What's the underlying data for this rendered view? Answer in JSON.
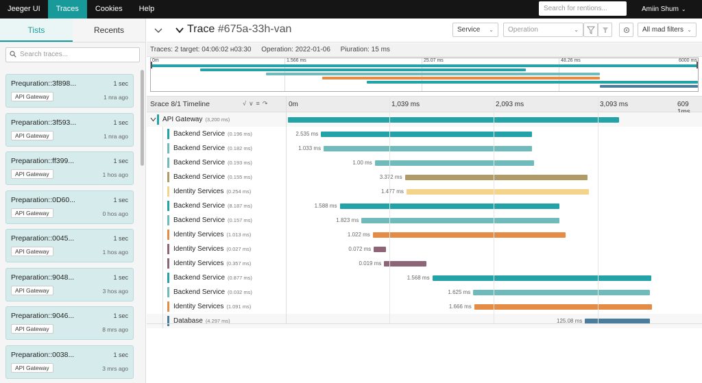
{
  "nav": {
    "brand": "Jeeger UI",
    "items": [
      "Traces",
      "Cookies",
      "Help"
    ],
    "search_placeholder": "Search for rentions...",
    "user": "Amіin Shum"
  },
  "sidebar": {
    "tabs": [
      "Tists",
      "Recents"
    ],
    "search_placeholder": "Search traces...",
    "cards": [
      {
        "title": "Prequration::3f898...",
        "duration": "1 sec",
        "service": "API Gateway",
        "ago": "1 nra ago"
      },
      {
        "title": "Preparation::3f593...",
        "duration": "1 sec",
        "service": "API Gateway",
        "ago": "1 nra ago"
      },
      {
        "title": "Preparation::ff399...",
        "duration": "1 sec",
        "service": "API Gateway",
        "ago": "1 hos ago"
      },
      {
        "title": "Preparation::0D60...",
        "duration": "1 sec",
        "service": "API Gateway",
        "ago": "0 hos ago"
      },
      {
        "title": "Preparation::0045...",
        "duration": "1 sec",
        "service": "API Gateway",
        "ago": "1 hos ago"
      },
      {
        "title": "Preparation::9048...",
        "duration": "1 sec",
        "service": "API Gateway",
        "ago": "3 hos ago"
      },
      {
        "title": "Preparation::9046...",
        "duration": "1 sec",
        "service": "API Gateway",
        "ago": "8 mrs ago"
      },
      {
        "title": "Preparation::0038...",
        "duration": "1 sec",
        "service": "API Gateway",
        "ago": "3 mrs ago"
      }
    ]
  },
  "header": {
    "title_prefix": "Trace",
    "trace_id": "#675a-33h-van",
    "service_select": "Service",
    "operation_placeholder": "Operation",
    "filters_select": "All mad filters"
  },
  "meta": {
    "traces": "Traces: 2 target: 04:06:02 н03:30",
    "operation": "Operation:  2022-01-06",
    "duration": "Piuration:  15 ms"
  },
  "minimap": {
    "ticks": [
      "0m",
      "1.566 ms",
      "25.07 ms",
      "48.26 ms",
      "6000 ms"
    ]
  },
  "timeline": {
    "title": "Srace 8/1 Timeline",
    "ticks": [
      "0m",
      "1,039 ms",
      "2,093 ms",
      "3,093 ms",
      "609 1ms"
    ],
    "total": 3200
  },
  "colors": {
    "teal": "#23a3a8",
    "teal_light": "#6fbabb",
    "brown": "#b09a66",
    "yellow": "#f3d48a",
    "orange": "#e48c45",
    "purple": "#8e6577",
    "steel": "#4a7d9c"
  },
  "spans": [
    {
      "service": "API Gateway",
      "dur": "(3,200 ms)",
      "label": "",
      "start": 0,
      "end": 3200,
      "color": "teal",
      "depth": 0
    },
    {
      "service": "Backend Service",
      "dur": "(0.196 ms)",
      "label": "2.535 ms",
      "start": 320,
      "end": 2360,
      "color": "teal",
      "depth": 1
    },
    {
      "service": "Backend Service",
      "dur": "(0.182 ms)",
      "label": "1.033 ms",
      "start": 345,
      "end": 2355,
      "color": "teal_light",
      "depth": 1
    },
    {
      "service": "Backend Service",
      "dur": "(0.193 ms)",
      "label": "1.00 ms",
      "start": 840,
      "end": 2375,
      "color": "teal_light",
      "depth": 1
    },
    {
      "service": "Backend Service",
      "dur": "(0.155 ms)",
      "label": "3.372 ms",
      "start": 1130,
      "end": 2895,
      "color": "brown",
      "depth": 1
    },
    {
      "service": "Identity Services",
      "dur": "(0.254 ms)",
      "label": "1.477 ms",
      "start": 1145,
      "end": 2910,
      "color": "yellow",
      "depth": 1
    },
    {
      "service": "Backend Service",
      "dur": "(8.187 ms)",
      "label": "1.588 ms",
      "start": 500,
      "end": 2620,
      "color": "teal",
      "depth": 1
    },
    {
      "service": "Backend Service",
      "dur": "(0.157 ms)",
      "label": "1.823 ms",
      "start": 710,
      "end": 2625,
      "color": "teal_light",
      "depth": 1
    },
    {
      "service": "Identity Services",
      "dur": "(1.013 ms)",
      "label": "1.022 ms",
      "start": 820,
      "end": 2680,
      "color": "orange",
      "depth": 1
    },
    {
      "service": "Identity Services",
      "dur": "(0.027 ms)",
      "label": "0.072 ms",
      "start": 830,
      "end": 945,
      "color": "purple",
      "depth": 1
    },
    {
      "service": "Identity Services",
      "dur": "(0.357 ms)",
      "label": "0.019 ms",
      "start": 930,
      "end": 1340,
      "color": "purple",
      "depth": 1
    },
    {
      "service": "Backend Service",
      "dur": "(0.877 ms)",
      "label": "1.568 ms",
      "start": 1395,
      "end": 3510,
      "color": "teal",
      "depth": 1
    },
    {
      "service": "Backend Service",
      "dur": "(0.032 ms)",
      "label": "1.625 ms",
      "start": 1790,
      "end": 3500,
      "color": "teal_light",
      "depth": 1
    },
    {
      "service": "Identity Services",
      "dur": "(1.091 ms)",
      "label": "1.666 ms",
      "start": 1800,
      "end": 3520,
      "color": "orange",
      "depth": 1
    },
    {
      "service": "Database",
      "dur": "(4.297 ms)",
      "label": "125.08 ms",
      "start": 2870,
      "end": 3500,
      "color": "steel",
      "depth": 1
    }
  ]
}
